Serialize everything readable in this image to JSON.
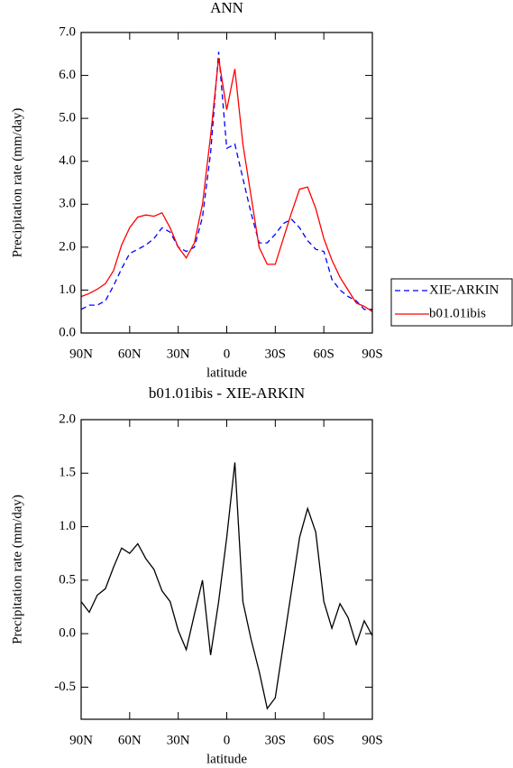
{
  "chart_data": [
    {
      "type": "line",
      "title": "ANN",
      "xlabel": "latitude",
      "ylabel": "Precipitation rate (mm/day)",
      "x": [
        90,
        85,
        80,
        75,
        70,
        65,
        60,
        55,
        50,
        45,
        40,
        35,
        30,
        25,
        20,
        15,
        10,
        5,
        0,
        -5,
        -10,
        -15,
        -20,
        -25,
        -30,
        -35,
        -40,
        -45,
        -50,
        -55,
        -60,
        -65,
        -70,
        -75,
        -80,
        -85,
        -90
      ],
      "series": [
        {
          "name": "XIE-ARKIN",
          "color": "#0000ff",
          "dash": true,
          "values": [
            0.55,
            0.65,
            0.65,
            0.75,
            1.1,
            1.5,
            1.85,
            1.95,
            2.05,
            2.2,
            2.45,
            2.35,
            2.0,
            1.9,
            2.0,
            2.7,
            4.2,
            6.55,
            4.3,
            4.4,
            3.6,
            2.8,
            2.1,
            2.1,
            2.3,
            2.55,
            2.65,
            2.45,
            2.15,
            1.95,
            1.9,
            1.25,
            1.0,
            0.85,
            0.75,
            0.55,
            0.55
          ]
        },
        {
          "name": "b01.01ibis",
          "color": "#ff0000",
          "dash": false,
          "values": [
            0.85,
            0.92,
            1.02,
            1.15,
            1.45,
            2.05,
            2.45,
            2.7,
            2.75,
            2.72,
            2.8,
            2.45,
            2.0,
            1.75,
            2.1,
            3.0,
            4.6,
            6.4,
            5.2,
            6.15,
            4.4,
            3.2,
            2.0,
            1.6,
            1.6,
            2.2,
            2.8,
            3.35,
            3.4,
            2.9,
            2.2,
            1.7,
            1.3,
            1.0,
            0.7,
            0.62,
            0.5
          ]
        }
      ],
      "xlim": [
        90,
        -90
      ],
      "xticks": [
        {
          "value": 90,
          "label": "90N"
        },
        {
          "value": 60,
          "label": "60N"
        },
        {
          "value": 30,
          "label": "30N"
        },
        0,
        {
          "value": -30,
          "label": "30S"
        },
        {
          "value": -60,
          "label": "60S"
        },
        {
          "value": -90,
          "label": "90S"
        }
      ],
      "ylim": [
        0,
        7
      ],
      "yticks": [
        {
          "value": 0,
          "label": "0.0"
        },
        {
          "value": 1,
          "label": "1.0"
        },
        {
          "value": 2,
          "label": "2.0"
        },
        {
          "value": 3,
          "label": "3.0"
        },
        {
          "value": 4,
          "label": "4.0"
        },
        {
          "value": 5,
          "label": "5.0"
        },
        {
          "value": 6,
          "label": "6.0"
        },
        {
          "value": 7,
          "label": "7.0"
        }
      ],
      "legend": "right"
    },
    {
      "type": "line",
      "title": "b01.01ibis - XIE-ARKIN",
      "xlabel": "latitude",
      "ylabel": "Precipitation rate (mm/day)",
      "x": [
        90,
        85,
        80,
        75,
        70,
        65,
        60,
        55,
        50,
        45,
        40,
        35,
        30,
        25,
        20,
        15,
        10,
        5,
        0,
        -5,
        -10,
        -15,
        -20,
        -25,
        -30,
        -35,
        -40,
        -45,
        -50,
        -55,
        -60,
        -65,
        -70,
        -75,
        -80,
        -85,
        -90
      ],
      "series": [
        {
          "color": "#000000",
          "dash": false,
          "values": [
            0.3,
            0.2,
            0.36,
            0.42,
            0.62,
            0.8,
            0.75,
            0.84,
            0.7,
            0.6,
            0.4,
            0.3,
            0.03,
            -0.15,
            0.18,
            0.5,
            -0.2,
            0.3,
            0.9,
            1.6,
            0.3,
            -0.05,
            -0.35,
            -0.7,
            -0.6,
            -0.1,
            0.4,
            0.9,
            1.17,
            0.95,
            0.3,
            0.05,
            0.28,
            0.15,
            -0.1,
            0.12,
            -0.02
          ]
        }
      ],
      "xlim": [
        90,
        -90
      ],
      "xticks": [
        {
          "value": 90,
          "label": "90N"
        },
        {
          "value": 60,
          "label": "60N"
        },
        {
          "value": 30,
          "label": "30N"
        },
        0,
        {
          "value": -30,
          "label": "30S"
        },
        {
          "value": -60,
          "label": "60S"
        },
        {
          "value": -90,
          "label": "90S"
        }
      ],
      "ylim": [
        -0.8,
        2.0
      ],
      "yticks": [
        {
          "value": 2,
          "label": "2.0"
        },
        1.5,
        {
          "value": 1,
          "label": "1.0"
        },
        0.5,
        {
          "value": 0,
          "label": "0.0"
        },
        -0.5
      ]
    }
  ]
}
